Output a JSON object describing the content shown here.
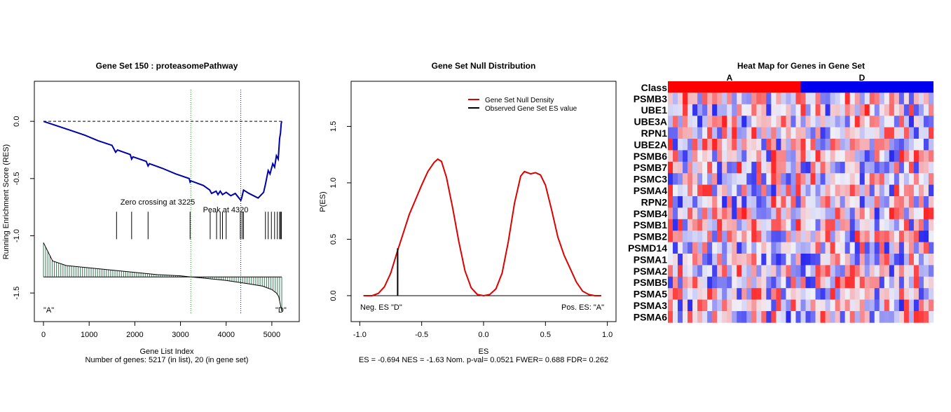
{
  "chart_data": [
    {
      "type": "line",
      "title": "Gene Set  150 : proteasomePathway",
      "xlabel": "Gene List Index",
      "subtitle": "Number of genes: 5217 (in list), 20 (in gene set)",
      "ylabel": "Running Enrichment Score (RES)",
      "xlim": [
        -200,
        5600
      ],
      "ylim": [
        -1.75,
        0.35
      ],
      "x_ticks": [
        0,
        1000,
        2000,
        3000,
        4000,
        5000
      ],
      "x_tick_labels": [
        "0",
        "1000",
        "2000",
        "3000",
        "4000",
        "5000"
      ],
      "y_ticks": [
        0.0,
        -0.5,
        -1.0,
        -1.5
      ],
      "y_tick_labels": [
        "0.0",
        "-0.5",
        "-1.0",
        "-1.5"
      ],
      "series": [
        {
          "x": [
            0,
            300,
            600,
            900,
            1200,
            1500,
            1580,
            1620,
            1900,
            1930,
            1960,
            2250,
            2290,
            2320,
            2600,
            2900,
            3190,
            3210,
            3225,
            3500,
            3640,
            3680,
            3780,
            3820,
            3870,
            3920,
            4000,
            4100,
            4200,
            4320,
            4340,
            4380,
            4500,
            4700,
            4820,
            4860,
            4920,
            4960,
            5020,
            5060,
            5100,
            5140,
            5170,
            5190,
            5205,
            5217
          ],
          "y": [
            0.0,
            -0.04,
            -0.08,
            -0.12,
            -0.17,
            -0.21,
            -0.27,
            -0.25,
            -0.29,
            -0.33,
            -0.31,
            -0.35,
            -0.39,
            -0.37,
            -0.41,
            -0.46,
            -0.5,
            -0.53,
            -0.52,
            -0.56,
            -0.6,
            -0.63,
            -0.61,
            -0.64,
            -0.61,
            -0.64,
            -0.62,
            -0.65,
            -0.63,
            -0.69,
            -0.67,
            -0.6,
            -0.63,
            -0.67,
            -0.62,
            -0.55,
            -0.43,
            -0.46,
            -0.37,
            -0.4,
            -0.3,
            -0.33,
            -0.15,
            -0.1,
            -0.02,
            0.0
          ]
        }
      ],
      "hits": [
        1600,
        1930,
        2290,
        3210,
        3650,
        3790,
        3870,
        3920,
        4000,
        4310,
        4350,
        4380,
        4860,
        4920,
        4990,
        5060,
        5120,
        5170,
        5190,
        5210
      ],
      "ranked_metric": {
        "x": [
          0,
          200,
          500,
          1000,
          1500,
          2000,
          2500,
          3000,
          3225,
          3500,
          4000,
          4500,
          4800,
          5000,
          5100,
          5150,
          5217
        ],
        "y": [
          -1.06,
          -1.22,
          -1.26,
          -1.28,
          -1.3,
          -1.32,
          -1.34,
          -1.35,
          -1.36,
          -1.37,
          -1.39,
          -1.42,
          -1.44,
          -1.47,
          -1.5,
          -1.53,
          -1.66
        ]
      },
      "baseline": -1.36,
      "zero_line": 0.0,
      "vlines": [
        3225,
        4320
      ],
      "annotations": [
        "Zero crossing at 3225",
        "Peak at 4320",
        "\"A\"",
        "\"D\""
      ],
      "colors": {
        "running_es": "#0000aa",
        "metric": "#3c7a5a",
        "zero_cross": "#00a000",
        "peak": "#0000cc"
      }
    },
    {
      "type": "line",
      "title": "Gene Set Null Distribution",
      "xlabel": "ES",
      "subtitle": "ES = -0.694  NES = -1.63 Nom. p-val= 0.0521 FWER= 0.688 FDR= 0.262",
      "ylabel": "P(ES)",
      "xlim": [
        -1.0,
        1.0
      ],
      "ylim": [
        -0.23,
        1.9
      ],
      "x_ticks": [
        -1.0,
        -0.5,
        0.0,
        0.5,
        1.0
      ],
      "x_tick_labels": [
        "-1.0",
        "-0.5",
        "0.0",
        "0.5",
        "1.0"
      ],
      "y_ticks": [
        0.0,
        0.5,
        1.0,
        1.5
      ],
      "y_tick_labels": [
        "0.0",
        "0.5",
        "1.0",
        "1.5"
      ],
      "series": [
        {
          "name": "Gene Set Null Density",
          "x": [
            -0.97,
            -0.9,
            -0.85,
            -0.8,
            -0.75,
            -0.7,
            -0.65,
            -0.6,
            -0.55,
            -0.5,
            -0.45,
            -0.4,
            -0.37,
            -0.34,
            -0.3,
            -0.25,
            -0.2,
            -0.15,
            -0.1,
            -0.05,
            0.0,
            0.05,
            0.1,
            0.15,
            0.2,
            0.25,
            0.3,
            0.33,
            0.38,
            0.42,
            0.46,
            0.5,
            0.55,
            0.6,
            0.65,
            0.7,
            0.75,
            0.8,
            0.85,
            0.9,
            0.95
          ],
          "y": [
            0.0,
            0.0,
            0.02,
            0.08,
            0.2,
            0.38,
            0.55,
            0.72,
            0.85,
            0.98,
            1.1,
            1.18,
            1.21,
            1.19,
            1.05,
            0.78,
            0.48,
            0.22,
            0.07,
            0.01,
            0.0,
            0.01,
            0.06,
            0.2,
            0.48,
            0.82,
            1.06,
            1.1,
            1.08,
            1.09,
            1.07,
            0.98,
            0.76,
            0.52,
            0.36,
            0.24,
            0.12,
            0.04,
            0.01,
            0.0,
            0.0
          ]
        },
        {
          "name": "Observed Gene Set ES value",
          "x": [
            -0.694,
            -0.694
          ],
          "y": [
            0.0,
            0.42
          ]
        }
      ],
      "legend": {
        "position": "top-right",
        "entries": [
          "Gene Set Null Density",
          "Observed Gene Set ES value"
        ]
      },
      "annotations": [
        "Neg. ES \"D\"",
        "Pos. ES: \"A\""
      ],
      "colors": {
        "density": "#dd0000",
        "observed": "#000000"
      }
    },
    {
      "type": "heatmap",
      "title": "Heat Map for Genes in Gene Set",
      "class_row_label": "Class",
      "class_labels": [
        "A",
        "D"
      ],
      "class_split": 0.5,
      "rows": [
        "PSMB3",
        "UBE1",
        "UBE3A",
        "RPN1",
        "UBE2A",
        "PSMB6",
        "PSMB7",
        "PSMC3",
        "PSMA4",
        "RPN2",
        "PSMB4",
        "PSMB1",
        "PSMB2",
        "PSMD14",
        "PSMA1",
        "PSMA2",
        "PSMB5",
        "PSMA5",
        "PSMA3",
        "PSMA6"
      ],
      "n_columns": 54,
      "colors": {
        "class_A": "#ff0000",
        "class_D": "#0000ee",
        "high": "#ff2020",
        "mid": "#f0f0f8",
        "low": "#2a2af0"
      }
    }
  ]
}
